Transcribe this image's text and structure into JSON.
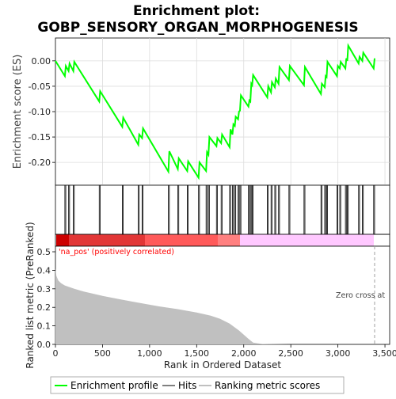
{
  "title_line1": "Enrichment plot:",
  "title_line2": "GOBP_SENSORY_ORGAN_MORPHOGENESIS",
  "colors": {
    "es_line": "#00ff00",
    "hits": "#000000",
    "metric_fill": "#c0c0c0",
    "zero_cross": "#a0a0a0",
    "pos_label": "#ff0000",
    "grid": "#dcdcdc"
  },
  "annotations": {
    "pos_label": "'na_pos' (positively correlated)",
    "zero_cross": "Zero cross at"
  },
  "legend": [
    {
      "key": "es",
      "label": "Enrichment profile"
    },
    {
      "key": "hits",
      "label": "Hits"
    },
    {
      "key": "metric",
      "label": "Ranking metric scores"
    }
  ],
  "chart_data": [
    {
      "type": "line",
      "name": "enrichment-profile",
      "ylabel": "Enrichment score (ES)",
      "xlim": [
        0,
        3550
      ],
      "ylim": [
        -0.245,
        0.045
      ],
      "yticks": [
        0.0,
        -0.05,
        -0.1,
        -0.15,
        -0.2
      ],
      "ytick_labels": [
        "0.00",
        "-0.05",
        "-0.10",
        "-0.15",
        "-0.20"
      ],
      "grid": true,
      "points": [
        [
          0,
          0.0
        ],
        [
          100,
          -0.03
        ],
        [
          110,
          -0.01
        ],
        [
          140,
          -0.02
        ],
        [
          150,
          -0.005
        ],
        [
          190,
          -0.02
        ],
        [
          200,
          -0.002
        ],
        [
          465,
          -0.08
        ],
        [
          475,
          -0.06
        ],
        [
          710,
          -0.13
        ],
        [
          720,
          -0.112
        ],
        [
          880,
          -0.165
        ],
        [
          890,
          -0.145
        ],
        [
          920,
          -0.152
        ],
        [
          930,
          -0.133
        ],
        [
          1200,
          -0.218
        ],
        [
          1210,
          -0.178
        ],
        [
          1300,
          -0.213
        ],
        [
          1310,
          -0.192
        ],
        [
          1400,
          -0.217
        ],
        [
          1410,
          -0.198
        ],
        [
          1520,
          -0.23
        ],
        [
          1530,
          -0.2
        ],
        [
          1600,
          -0.217
        ],
        [
          1610,
          -0.18
        ],
        [
          1625,
          -0.185
        ],
        [
          1635,
          -0.15
        ],
        [
          1710,
          -0.168
        ],
        [
          1720,
          -0.152
        ],
        [
          1760,
          -0.162
        ],
        [
          1770,
          -0.145
        ],
        [
          1850,
          -0.17
        ],
        [
          1860,
          -0.135
        ],
        [
          1880,
          -0.145
        ],
        [
          1890,
          -0.125
        ],
        [
          1905,
          -0.128
        ],
        [
          1915,
          -0.11
        ],
        [
          1940,
          -0.115
        ],
        [
          1950,
          -0.1
        ],
        [
          1960,
          -0.098
        ],
        [
          1970,
          -0.068
        ],
        [
          2050,
          -0.09
        ],
        [
          2060,
          -0.078
        ],
        [
          2070,
          -0.08
        ],
        [
          2080,
          -0.045
        ],
        [
          2090,
          -0.048
        ],
        [
          2100,
          -0.028
        ],
        [
          2250,
          -0.072
        ],
        [
          2260,
          -0.05
        ],
        [
          2290,
          -0.062
        ],
        [
          2300,
          -0.042
        ],
        [
          2330,
          -0.052
        ],
        [
          2340,
          -0.035
        ],
        [
          2370,
          -0.045
        ],
        [
          2380,
          -0.012
        ],
        [
          2480,
          -0.038
        ],
        [
          2490,
          -0.01
        ],
        [
          2640,
          -0.048
        ],
        [
          2650,
          -0.012
        ],
        [
          2820,
          -0.065
        ],
        [
          2830,
          -0.045
        ],
        [
          2860,
          -0.052
        ],
        [
          2870,
          -0.03
        ],
        [
          2880,
          -0.032
        ],
        [
          2890,
          -0.002
        ],
        [
          2990,
          -0.03
        ],
        [
          3000,
          -0.01
        ],
        [
          3020,
          -0.015
        ],
        [
          3030,
          -0.002
        ],
        [
          3080,
          -0.015
        ],
        [
          3090,
          0.005
        ],
        [
          3100,
          0.0
        ],
        [
          3110,
          0.03
        ],
        [
          3220,
          -0.005
        ],
        [
          3230,
          0.008
        ],
        [
          3260,
          0.0
        ],
        [
          3270,
          0.016
        ],
        [
          3380,
          -0.015
        ],
        [
          3390,
          0.005
        ]
      ]
    },
    {
      "type": "hits",
      "name": "hits",
      "positions": [
        100,
        110,
        140,
        150,
        190,
        200,
        465,
        475,
        710,
        720,
        880,
        890,
        920,
        930,
        1200,
        1210,
        1300,
        1310,
        1400,
        1410,
        1520,
        1530,
        1600,
        1610,
        1625,
        1635,
        1710,
        1720,
        1760,
        1770,
        1850,
        1860,
        1880,
        1890,
        1905,
        1915,
        1940,
        1950,
        1960,
        1970,
        2050,
        2060,
        2070,
        2080,
        2090,
        2100,
        2250,
        2260,
        2290,
        2300,
        2330,
        2340,
        2370,
        2380,
        2480,
        2490,
        2640,
        2650,
        2820,
        2830,
        2860,
        2870,
        2880,
        2890,
        2990,
        3000,
        3020,
        3030,
        3080,
        3090,
        3100,
        3110,
        3220,
        3230,
        3260,
        3270,
        3380,
        3390
      ]
    },
    {
      "type": "area",
      "name": "ranking-metric",
      "xlabel": "Rank in Ordered Dataset",
      "ylabel": "Ranked list metric (PreRanked)",
      "xlim": [
        0,
        3550
      ],
      "ylim": [
        0,
        0.53
      ],
      "xticks": [
        0,
        500,
        1000,
        1500,
        2000,
        2500,
        3000,
        3500
      ],
      "xtick_labels": [
        "0",
        "500",
        "1,000",
        "1,500",
        "2,000",
        "2,500",
        "3,000",
        "3,500"
      ],
      "yticks": [
        0.0,
        0.1,
        0.2,
        0.3,
        0.4,
        0.5
      ],
      "ytick_labels": [
        "0.0",
        "0.1",
        "0.2",
        "0.3",
        "0.4",
        "0.5"
      ],
      "zero_cross": 3390,
      "points": [
        [
          0,
          0.41
        ],
        [
          10,
          0.37
        ],
        [
          30,
          0.345
        ],
        [
          60,
          0.33
        ],
        [
          100,
          0.318
        ],
        [
          200,
          0.3
        ],
        [
          300,
          0.285
        ],
        [
          500,
          0.262
        ],
        [
          700,
          0.242
        ],
        [
          900,
          0.223
        ],
        [
          1100,
          0.205
        ],
        [
          1300,
          0.19
        ],
        [
          1500,
          0.172
        ],
        [
          1650,
          0.155
        ],
        [
          1750,
          0.138
        ],
        [
          1850,
          0.112
        ],
        [
          1950,
          0.075
        ],
        [
          2050,
          0.03
        ],
        [
          2100,
          0.01
        ],
        [
          2200,
          0.002
        ],
        [
          2500,
          0.0
        ],
        [
          3390,
          0.0
        ]
      ]
    }
  ]
}
